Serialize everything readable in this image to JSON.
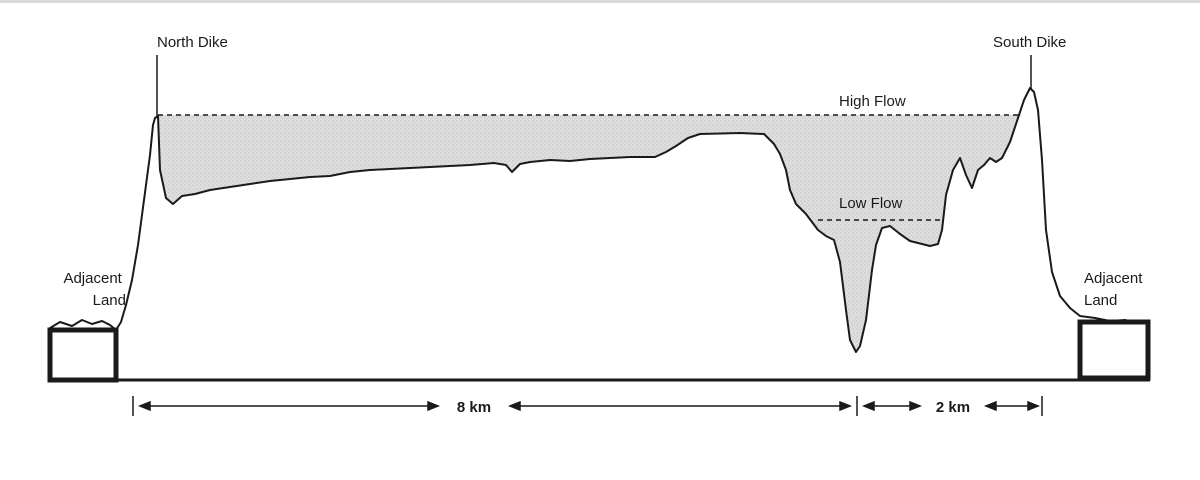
{
  "labels": {
    "north_dike": "North Dike",
    "south_dike": "South Dike",
    "high_flow": "High Flow",
    "low_flow": "Low Flow",
    "adjacent_land_left": [
      "Adjacent",
      "Land"
    ],
    "adjacent_land_right": [
      "Adjacent",
      "Land"
    ]
  },
  "dimensions": {
    "span_main": "8 km",
    "span_minor": "2 km"
  },
  "colors": {
    "ink": "#1a1a1a",
    "water_fill": "#d6d6d6",
    "background": "#ffffff"
  }
}
